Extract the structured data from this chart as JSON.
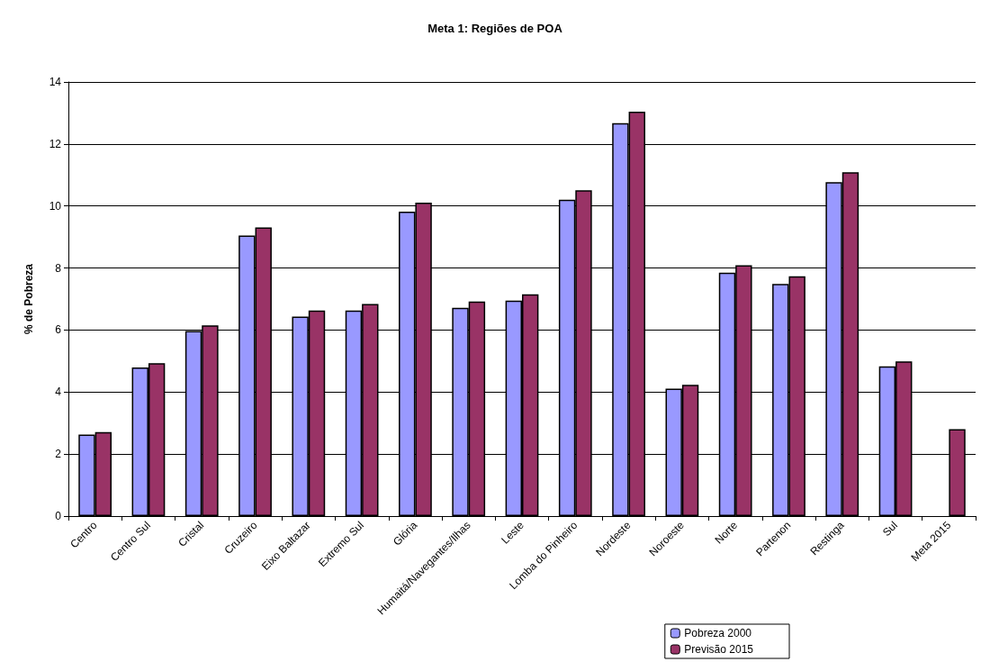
{
  "chart_data": {
    "type": "bar",
    "title": "Meta 1: Regiões de POA",
    "ylabel": "% de Pobreza",
    "categories": [
      "Centro",
      "Centro Sul",
      "Cristal",
      "Cruzeiro",
      "Eixo Baltazar",
      "Extremo Sul",
      "Glória",
      "Humaitá/Navegantes/Ilhas",
      "Leste",
      "Lomba do Pinheiro",
      "Nordeste",
      "Noroeste",
      "Norte",
      "Partenon",
      "Restinga",
      "Sul",
      "Meta 2015"
    ],
    "series": [
      {
        "name": "Pobreza 2000",
        "color": "#9999ff",
        "values": [
          2.63,
          4.79,
          5.97,
          9.05,
          6.43,
          6.63,
          9.82,
          6.72,
          6.95,
          10.2,
          12.67,
          4.11,
          7.85,
          7.49,
          10.77,
          4.83,
          null
        ]
      },
      {
        "name": "Previsão 2015",
        "color": "#993366",
        "values": [
          2.71,
          4.93,
          6.15,
          9.31,
          6.63,
          6.84,
          10.11,
          6.92,
          7.15,
          10.51,
          13.04,
          4.23,
          8.09,
          7.73,
          11.09,
          4.99,
          2.8
        ]
      }
    ],
    "ylim": [
      0,
      14
    ],
    "yticks": [
      0,
      2,
      4,
      6,
      8,
      10,
      12,
      14
    ],
    "grid": "y",
    "legend": "bottom right"
  }
}
